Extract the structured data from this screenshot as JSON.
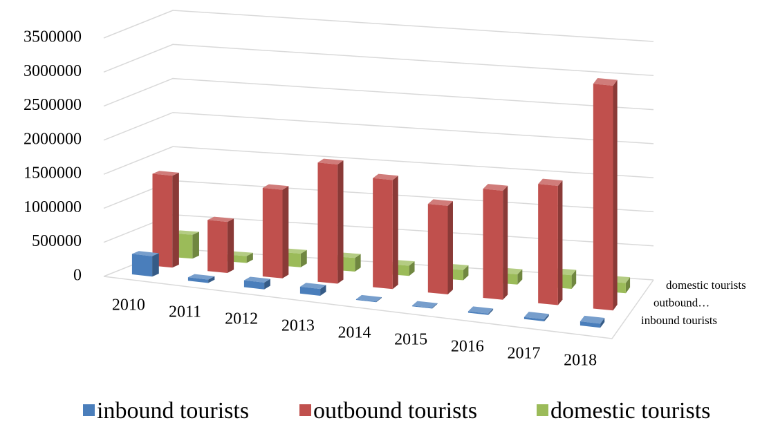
{
  "chart_data": {
    "type": "bar3d",
    "categories": [
      "2010",
      "2011",
      "2012",
      "2013",
      "2014",
      "2015",
      "2016",
      "2017",
      "2018"
    ],
    "depth_labels": [
      "inbound tourists",
      "outbound…",
      "domestic tourists"
    ],
    "series": [
      {
        "name": "inbound tourists",
        "color": "#4a7ebb",
        "values": [
          300000,
          50000,
          100000,
          100000,
          10000,
          10000,
          20000,
          30000,
          60000
        ]
      },
      {
        "name": "outbound tourists",
        "color": "#c0504d",
        "values": [
          1350000,
          750000,
          1300000,
          1750000,
          1600000,
          1300000,
          1600000,
          1750000,
          3300000
        ]
      },
      {
        "name": "domestic tourists",
        "color": "#9bbb59",
        "values": [
          350000,
          100000,
          200000,
          200000,
          150000,
          150000,
          150000,
          200000,
          150000
        ]
      }
    ],
    "ylim": [
      0,
      3500000
    ],
    "yticks": [
      0,
      500000,
      1000000,
      1500000,
      2000000,
      2500000,
      3000000,
      3500000
    ],
    "grid": true
  }
}
